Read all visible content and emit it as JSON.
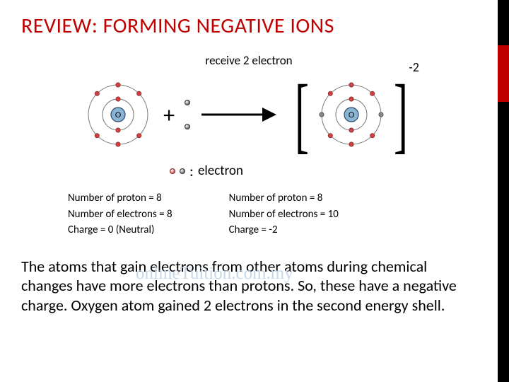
{
  "slide": {
    "title": "REVIEW: FORMING NEGATIVE IONS",
    "top_label": "receive 2 electron",
    "charge_label": "-2",
    "plus": "+",
    "legend_colon": ":",
    "legend_text": "electron",
    "watermark": "onlineTuition.com.my",
    "body_text": "The atoms that gain electrons from other atoms during chemical changes have more electrons than protons. So, these have a negative charge.  Oxygen atom gained 2 electrons in the second energy shell."
  },
  "stats_left": {
    "line1": "Number of proton = 8",
    "line2": "Number of electrons = 8",
    "line3": "Charge = 0 (Neutral)"
  },
  "stats_right": {
    "line1": "Number of proton = 8",
    "line2": "Number of electrons = 10",
    "line3": "Charge = -2"
  },
  "atom_neutral": {
    "nucleus_label": "O",
    "nucleus_fill": "#8ab4d4",
    "nucleus_stroke": "#2a4a6a",
    "shell_stroke": "#7a7a7a",
    "electron_fill_r": "#d04040",
    "electron_stroke": "#702020",
    "shell1_r": 22,
    "shell2_r": 42,
    "shell1_count": 2,
    "shell2_count": 6,
    "added_count": 0
  },
  "atom_ion": {
    "nucleus_label": "O",
    "nucleus_fill": "#8ab4d4",
    "nucleus_stroke": "#2a4a6a",
    "shell_stroke": "#7a7a7a",
    "electron_fill_r": "#d04040",
    "electron_stroke": "#702020",
    "added_fill": "#888888",
    "added_stroke": "#333333",
    "shell1_r": 22,
    "shell2_r": 42,
    "shell1_count": 2,
    "shell2_count": 6,
    "added_count": 2
  },
  "colors": {
    "title": "#c00000",
    "sidebar": "#000000",
    "accent": "#c00000",
    "background": "#ffffff"
  }
}
